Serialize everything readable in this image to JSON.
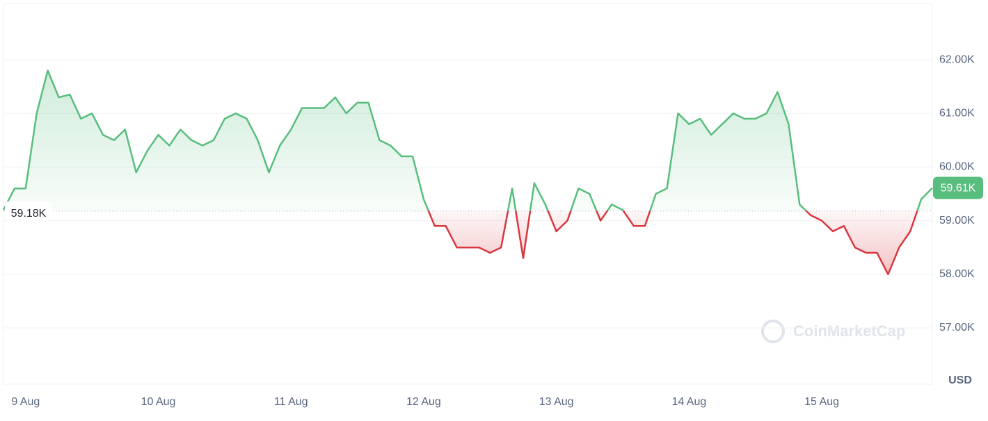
{
  "chart_data": {
    "type": "baseline-line",
    "categories": [
      null,
      null,
      "9 Aug",
      null,
      null,
      null,
      null,
      null,
      null,
      null,
      null,
      null,
      null,
      null,
      "10 Aug",
      null,
      null,
      null,
      null,
      null,
      null,
      null,
      null,
      null,
      null,
      null,
      "11 Aug",
      null,
      null,
      null,
      null,
      null,
      null,
      null,
      null,
      null,
      null,
      null,
      "12 Aug",
      null,
      null,
      null,
      null,
      null,
      null,
      null,
      null,
      null,
      null,
      null,
      "13 Aug",
      null,
      null,
      null,
      null,
      null,
      null,
      null,
      null,
      null,
      null,
      null,
      "14 Aug",
      null,
      null,
      null,
      null,
      null,
      null,
      null,
      null,
      null,
      null,
      null,
      "15 Aug",
      null,
      null,
      null,
      null,
      null,
      null,
      null,
      null,
      null,
      null
    ],
    "values": [
      59200,
      59600,
      59600,
      61000,
      61800,
      61300,
      61350,
      60900,
      61000,
      60600,
      60500,
      60700,
      59900,
      60300,
      60600,
      60400,
      60700,
      60500,
      60400,
      60500,
      60900,
      61000,
      60900,
      60500,
      59900,
      60400,
      60700,
      61100,
      61100,
      61100,
      61300,
      61000,
      61200,
      61200,
      60500,
      60400,
      60200,
      60200,
      59400,
      58900,
      58900,
      58500,
      58500,
      58500,
      58400,
      58500,
      59600,
      58300,
      59700,
      59300,
      58800,
      59000,
      59600,
      59500,
      59000,
      59300,
      59200,
      58900,
      58900,
      59500,
      59600,
      61000,
      60800,
      60900,
      60600,
      60800,
      61000,
      60900,
      60900,
      61000,
      61400,
      60800,
      59300,
      59100,
      59000,
      58800,
      58900,
      58500,
      58400,
      58400,
      58000,
      58500,
      58800,
      59400,
      59610
    ],
    "value_labels": [
      null,
      null,
      null,
      null,
      null,
      null,
      null,
      null,
      null,
      null,
      null,
      null,
      null,
      null,
      null,
      null,
      null,
      null,
      null,
      null,
      null,
      null,
      null,
      null,
      null,
      null,
      null,
      null,
      null,
      null,
      null,
      null,
      null,
      null,
      null,
      null,
      null,
      null,
      null,
      null,
      null,
      null,
      null,
      null,
      null,
      null,
      null,
      null,
      null,
      null,
      null,
      null,
      null,
      null,
      null,
      null,
      null,
      null,
      null,
      null,
      null,
      null,
      null,
      null,
      null,
      null,
      null,
      null,
      null,
      null,
      null,
      null,
      null,
      null,
      null,
      null,
      null,
      null,
      null,
      null,
      null,
      null,
      null,
      null,
      "59.61K"
    ],
    "baseline": {
      "value": 59180,
      "label": "59.18K"
    },
    "up_color": "#58bd7d",
    "down_color": "#d9363e",
    "ylim": [
      55950,
      63050
    ],
    "yticks": [
      {
        "value": 57000,
        "label": "57.00K"
      },
      {
        "value": 58000,
        "label": "58.00K"
      },
      {
        "value": 59000,
        "label": "59.00K"
      },
      {
        "value": 60000,
        "label": "60.00K"
      },
      {
        "value": 61000,
        "label": "61.00K"
      },
      {
        "value": 62000,
        "label": "62.00K"
      }
    ],
    "y_unit": "USD",
    "watermark": "CoinMarketCap",
    "grid": true
  }
}
